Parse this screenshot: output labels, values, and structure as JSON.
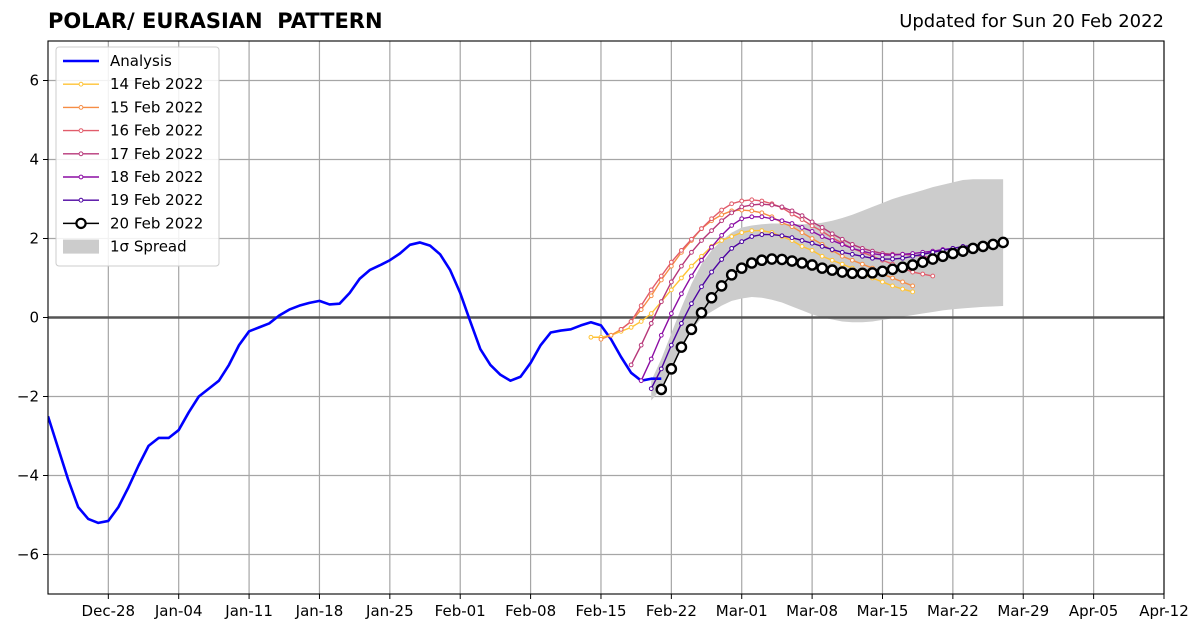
{
  "chart_data": {
    "type": "line",
    "title": "POLAR/ EURASIAN  PATTERN",
    "subtitle": "Updated for Sun 20 Feb 2022",
    "xlabel": "",
    "ylabel": "",
    "xlim": [
      "2021-12-22",
      "2022-04-12"
    ],
    "ylim": [
      -7,
      7
    ],
    "x_ticks": [
      {
        "date": "2021-12-28",
        "label": "Dec-28"
      },
      {
        "date": "2022-01-04",
        "label": "Jan-04"
      },
      {
        "date": "2022-01-11",
        "label": "Jan-11"
      },
      {
        "date": "2022-01-18",
        "label": "Jan-18"
      },
      {
        "date": "2022-01-25",
        "label": "Jan-25"
      },
      {
        "date": "2022-02-01",
        "label": "Feb-01"
      },
      {
        "date": "2022-02-08",
        "label": "Feb-08"
      },
      {
        "date": "2022-02-15",
        "label": "Feb-15"
      },
      {
        "date": "2022-02-22",
        "label": "Feb-22"
      },
      {
        "date": "2022-03-01",
        "label": "Mar-01"
      },
      {
        "date": "2022-03-08",
        "label": "Mar-08"
      },
      {
        "date": "2022-03-15",
        "label": "Mar-15"
      },
      {
        "date": "2022-03-22",
        "label": "Mar-22"
      },
      {
        "date": "2022-03-29",
        "label": "Mar-29"
      },
      {
        "date": "2022-04-05",
        "label": "Apr-05"
      },
      {
        "date": "2022-04-12",
        "label": "Apr-12"
      }
    ],
    "y_ticks": [
      {
        "value": -6,
        "label": "−6"
      },
      {
        "value": -4,
        "label": "−4"
      },
      {
        "value": -2,
        "label": "−2"
      },
      {
        "value": 0,
        "label": "0"
      },
      {
        "value": 2,
        "label": "2"
      },
      {
        "value": 4,
        "label": "4"
      },
      {
        "value": 6,
        "label": "6"
      }
    ],
    "grid": true,
    "legend_position": "top-left",
    "analysis": {
      "name": "Analysis",
      "color": "#0000ff",
      "start_date": "2021-12-22",
      "values": [
        -2.5,
        -3.3,
        -4.1,
        -4.8,
        -5.1,
        -5.2,
        -5.15,
        -4.8,
        -4.3,
        -3.75,
        -3.25,
        -3.05,
        -3.05,
        -2.85,
        -2.4,
        -2.0,
        -1.8,
        -1.6,
        -1.2,
        -0.7,
        -0.35,
        -0.25,
        -0.15,
        0.05,
        0.2,
        0.3,
        0.37,
        0.42,
        0.33,
        0.35,
        0.62,
        0.98,
        1.2,
        1.32,
        1.45,
        1.62,
        1.84,
        1.9,
        1.82,
        1.6,
        1.2,
        0.62,
        -0.1,
        -0.8,
        -1.2,
        -1.45,
        -1.6,
        -1.5,
        -1.15,
        -0.7,
        -0.38,
        -0.33,
        -0.3,
        -0.2,
        -0.12,
        -0.2,
        -0.55,
        -1.0,
        -1.4,
        -1.6,
        -1.55,
        -1.55
      ]
    },
    "spread": {
      "name": "1σ Spread",
      "color": "#cccccc",
      "start_date": "2022-02-20",
      "lower": [
        -2.1,
        -1.8,
        -1.3,
        -0.8,
        -0.35,
        0.0,
        0.15,
        0.3,
        0.42,
        0.48,
        0.52,
        0.5,
        0.45,
        0.38,
        0.28,
        0.18,
        0.08,
        0.0,
        -0.05,
        -0.1,
        -0.12,
        -0.12,
        -0.1,
        -0.06,
        -0.02,
        0.02,
        0.06,
        0.1,
        0.14,
        0.18,
        0.21,
        0.23,
        0.25,
        0.27,
        0.28,
        0.29
      ],
      "upper": [
        -1.6,
        -1.05,
        -0.4,
        0.25,
        0.85,
        1.35,
        1.7,
        1.95,
        2.15,
        2.28,
        2.33,
        2.36,
        2.38,
        2.38,
        2.37,
        2.36,
        2.37,
        2.4,
        2.45,
        2.52,
        2.6,
        2.7,
        2.8,
        2.9,
        3.0,
        3.08,
        3.15,
        3.22,
        3.3,
        3.36,
        3.42,
        3.48,
        3.5,
        3.5,
        3.5,
        3.5
      ]
    },
    "forecasts": [
      {
        "name": "14 Feb 2022",
        "color": "#ffc335",
        "start_date": "2022-02-14",
        "values": [
          -0.5,
          -0.5,
          -0.45,
          -0.35,
          -0.25,
          -0.1,
          0.1,
          0.4,
          0.7,
          1.0,
          1.3,
          1.55,
          1.8,
          1.95,
          2.05,
          2.15,
          2.2,
          2.2,
          2.15,
          2.05,
          1.95,
          1.8,
          1.7,
          1.55,
          1.45,
          1.35,
          1.25,
          1.1,
          1.0,
          0.9,
          0.8,
          0.72,
          0.65
        ]
      },
      {
        "name": "15 Feb 2022",
        "color": "#f68d45",
        "start_date": "2022-02-15",
        "values": [
          -0.55,
          -0.45,
          -0.3,
          -0.1,
          0.2,
          0.55,
          0.95,
          1.3,
          1.65,
          1.95,
          2.25,
          2.45,
          2.6,
          2.7,
          2.72,
          2.7,
          2.65,
          2.55,
          2.4,
          2.3,
          2.15,
          2.0,
          1.85,
          1.7,
          1.55,
          1.45,
          1.35,
          1.25,
          1.1,
          1.0,
          0.9,
          0.8
        ]
      },
      {
        "name": "16 Feb 2022",
        "color": "#e15c6b",
        "start_date": "2022-02-17",
        "values": [
          -0.3,
          -0.1,
          0.3,
          0.7,
          1.05,
          1.4,
          1.7,
          1.98,
          2.25,
          2.5,
          2.72,
          2.88,
          2.95,
          2.98,
          2.95,
          2.88,
          2.78,
          2.62,
          2.48,
          2.32,
          2.18,
          2.02,
          1.88,
          1.75,
          1.65,
          1.55,
          1.45,
          1.35,
          1.25,
          1.15,
          1.1,
          1.05
        ]
      },
      {
        "name": "17 Feb 2022",
        "color": "#b73779",
        "start_date": "2022-02-18",
        "values": [
          -1.2,
          -0.7,
          -0.15,
          0.4,
          0.9,
          1.3,
          1.65,
          1.95,
          2.2,
          2.45,
          2.65,
          2.8,
          2.85,
          2.87,
          2.85,
          2.8,
          2.7,
          2.58,
          2.42,
          2.28,
          2.12,
          1.98,
          1.85,
          1.75,
          1.68,
          1.62,
          1.6,
          1.6,
          1.58,
          1.55,
          1.5
        ]
      },
      {
        "name": "18 Feb 2022",
        "color": "#8c0da4",
        "start_date": "2022-02-19",
        "values": [
          -1.6,
          -1.05,
          -0.45,
          0.1,
          0.6,
          1.05,
          1.45,
          1.78,
          2.08,
          2.33,
          2.5,
          2.55,
          2.55,
          2.5,
          2.45,
          2.38,
          2.28,
          2.18,
          2.05,
          1.95,
          1.85,
          1.75,
          1.68,
          1.62,
          1.58,
          1.58,
          1.6,
          1.62,
          1.65,
          1.68,
          1.72,
          1.75
        ]
      },
      {
        "name": "19 Feb 2022",
        "color": "#4c02a1",
        "start_date": "2022-02-20",
        "values": [
          -1.8,
          -1.3,
          -0.7,
          -0.15,
          0.35,
          0.78,
          1.15,
          1.47,
          1.75,
          1.92,
          2.05,
          2.1,
          2.1,
          2.07,
          2.02,
          1.95,
          1.88,
          1.8,
          1.72,
          1.65,
          1.6,
          1.55,
          1.5,
          1.48,
          1.48,
          1.5,
          1.55,
          1.6,
          1.65,
          1.7,
          1.75,
          1.8,
          1.82
        ]
      }
    ],
    "latest": {
      "name": "20 Feb 2022",
      "color": "#000000",
      "start_date": "2022-02-21",
      "values": [
        -1.82,
        -1.3,
        -0.75,
        -0.3,
        0.12,
        0.5,
        0.8,
        1.08,
        1.25,
        1.38,
        1.45,
        1.48,
        1.47,
        1.43,
        1.38,
        1.33,
        1.25,
        1.2,
        1.15,
        1.12,
        1.12,
        1.13,
        1.17,
        1.22,
        1.27,
        1.33,
        1.4,
        1.48,
        1.55,
        1.62,
        1.68,
        1.75,
        1.8,
        1.85,
        1.9
      ]
    }
  }
}
